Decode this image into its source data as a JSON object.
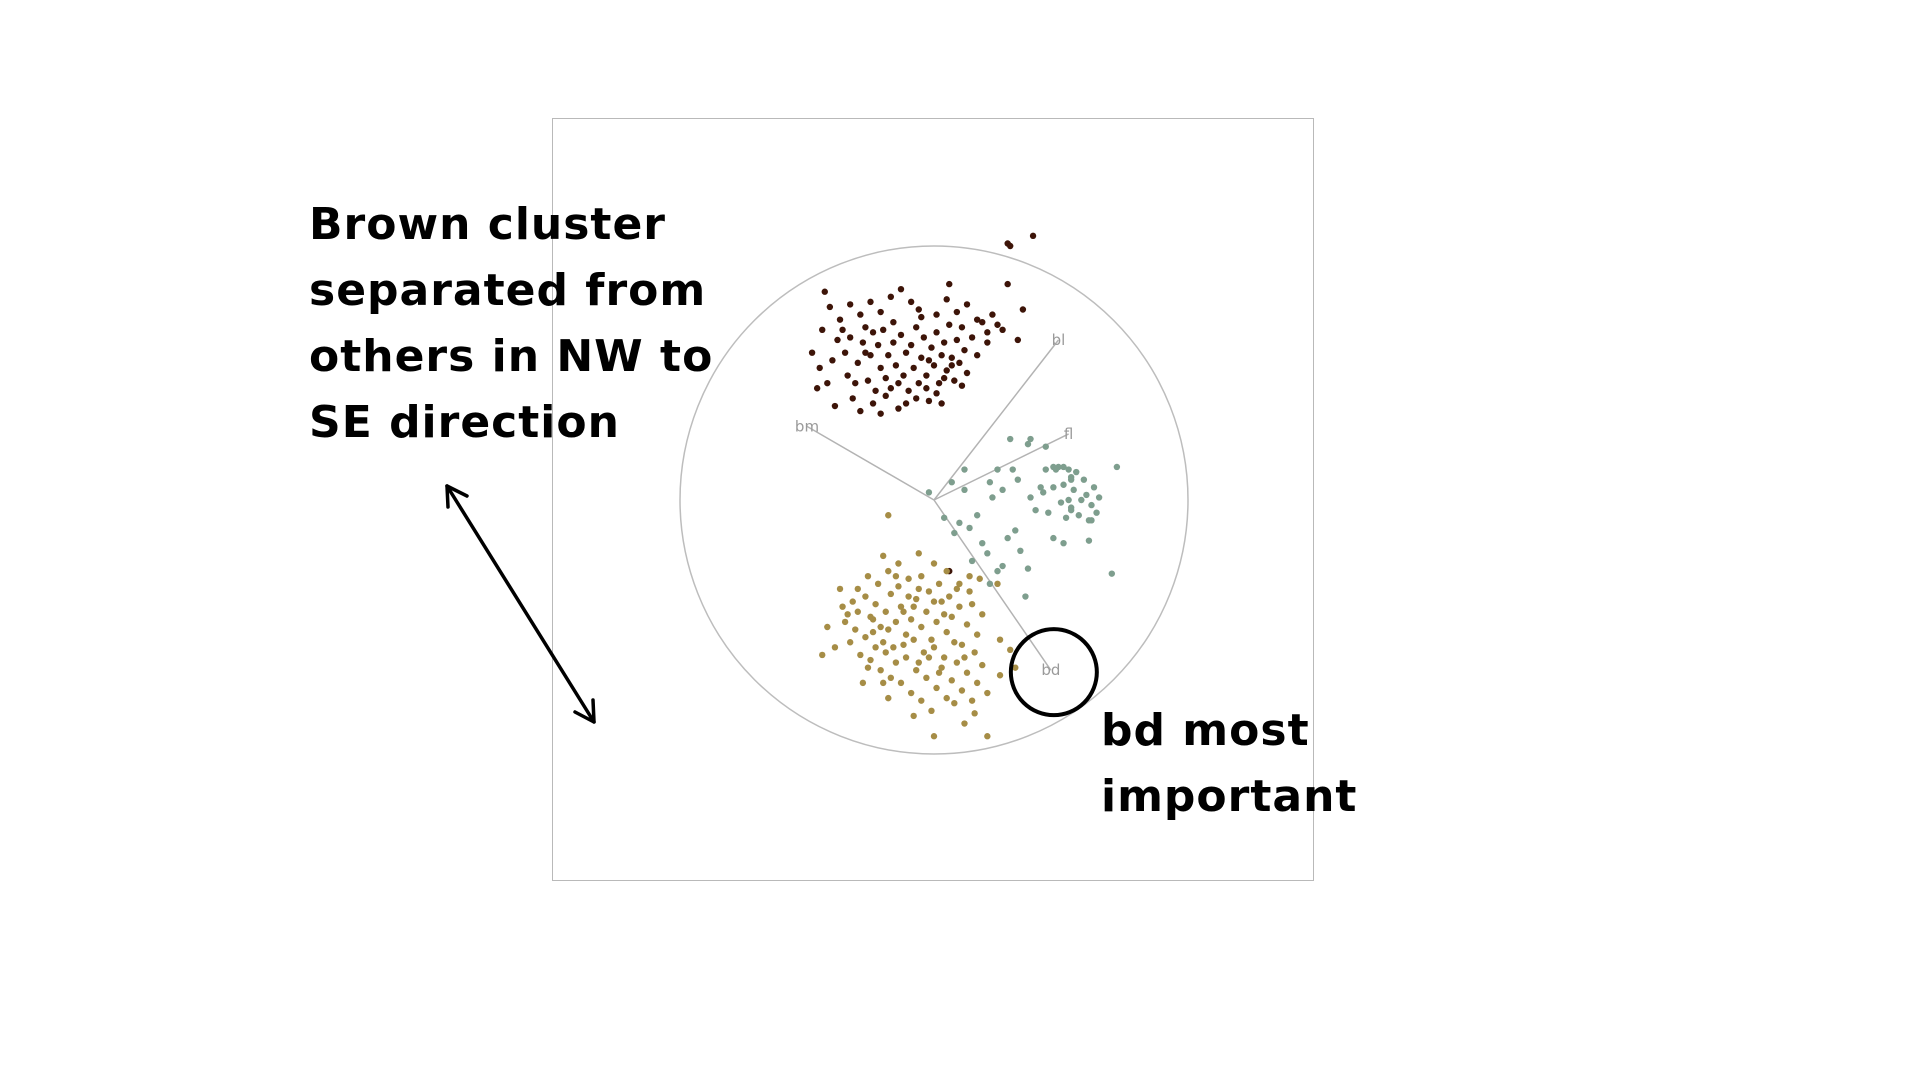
{
  "chart_data": {
    "type": "scatter",
    "title": "",
    "xlabel": "",
    "ylabel": "",
    "xlim": [
      -1,
      1
    ],
    "ylim": [
      -1,
      1
    ],
    "projection_circle_radius": 1,
    "grid": false,
    "axes": [
      {
        "label": "bl",
        "x": 0.49,
        "y": 0.63
      },
      {
        "label": "bm",
        "x": -0.5,
        "y": 0.29
      },
      {
        "label": "fl",
        "x": 0.53,
        "y": 0.26
      },
      {
        "label": "bd",
        "x": 0.46,
        "y": -0.67
      }
    ],
    "series": [
      {
        "color": "#3d1408",
        "points": [
          [
            -0.43,
            0.82
          ],
          [
            -0.41,
            0.76
          ],
          [
            -0.37,
            0.71
          ],
          [
            -0.33,
            0.77
          ],
          [
            -0.29,
            0.73
          ],
          [
            -0.25,
            0.78
          ],
          [
            -0.21,
            0.74
          ],
          [
            -0.17,
            0.8
          ],
          [
            -0.13,
            0.83
          ],
          [
            -0.09,
            0.78
          ],
          [
            -0.05,
            0.72
          ],
          [
            0.01,
            0.73
          ],
          [
            0.05,
            0.79
          ],
          [
            0.09,
            0.74
          ],
          [
            0.13,
            0.77
          ],
          [
            0.17,
            0.71
          ],
          [
            0.21,
            0.66
          ],
          [
            0.25,
            0.69
          ],
          [
            0.29,
            0.85
          ],
          [
            0.39,
            1.04
          ],
          [
            0.29,
            1.01
          ],
          [
            0.3,
            1.0
          ],
          [
            -0.48,
            0.58
          ],
          [
            -0.45,
            0.52
          ],
          [
            -0.46,
            0.44
          ],
          [
            -0.42,
            0.46
          ],
          [
            -0.4,
            0.55
          ],
          [
            -0.38,
            0.63
          ],
          [
            -0.35,
            0.58
          ],
          [
            -0.34,
            0.49
          ],
          [
            -0.32,
            0.4
          ],
          [
            -0.3,
            0.54
          ],
          [
            -0.28,
            0.62
          ],
          [
            -0.27,
            0.68
          ],
          [
            -0.26,
            0.47
          ],
          [
            -0.25,
            0.57
          ],
          [
            -0.23,
            0.43
          ],
          [
            -0.22,
            0.61
          ],
          [
            -0.21,
            0.52
          ],
          [
            -0.2,
            0.67
          ],
          [
            -0.19,
            0.48
          ],
          [
            -0.18,
            0.57
          ],
          [
            -0.17,
            0.44
          ],
          [
            -0.16,
            0.62
          ],
          [
            -0.15,
            0.53
          ],
          [
            -0.14,
            0.36
          ],
          [
            -0.13,
            0.65
          ],
          [
            -0.12,
            0.49
          ],
          [
            -0.11,
            0.58
          ],
          [
            -0.1,
            0.43
          ],
          [
            -0.09,
            0.61
          ],
          [
            -0.08,
            0.52
          ],
          [
            -0.07,
            0.68
          ],
          [
            -0.06,
            0.46
          ],
          [
            -0.05,
            0.56
          ],
          [
            -0.04,
            0.64
          ],
          [
            -0.03,
            0.49
          ],
          [
            -0.02,
            0.39
          ],
          [
            -0.01,
            0.6
          ],
          [
            0.0,
            0.53
          ],
          [
            0.01,
            0.66
          ],
          [
            0.02,
            0.46
          ],
          [
            0.03,
            0.57
          ],
          [
            0.04,
            0.62
          ],
          [
            0.05,
            0.51
          ],
          [
            0.06,
            0.69
          ],
          [
            0.07,
            0.56
          ],
          [
            0.08,
            0.47
          ],
          [
            0.09,
            0.63
          ],
          [
            0.1,
            0.54
          ],
          [
            0.11,
            0.68
          ],
          [
            0.12,
            0.59
          ],
          [
            0.13,
            0.5
          ],
          [
            0.15,
            0.64
          ],
          [
            0.17,
            0.57
          ],
          [
            0.19,
            0.7
          ],
          [
            0.21,
            0.62
          ],
          [
            0.23,
            0.73
          ],
          [
            0.27,
            0.67
          ],
          [
            0.33,
            0.63
          ],
          [
            0.35,
            0.75
          ],
          [
            -0.36,
            0.67
          ],
          [
            -0.31,
            0.46
          ],
          [
            -0.29,
            0.35
          ],
          [
            -0.24,
            0.38
          ],
          [
            -0.19,
            0.41
          ],
          [
            -0.11,
            0.38
          ],
          [
            -0.07,
            0.4
          ],
          [
            -0.03,
            0.44
          ],
          [
            0.01,
            0.42
          ],
          [
            0.03,
            0.38
          ],
          [
            0.07,
            0.53
          ],
          [
            0.11,
            0.45
          ],
          [
            -0.44,
            0.67
          ],
          [
            -0.39,
            0.37
          ],
          [
            -0.33,
            0.64
          ],
          [
            -0.24,
            0.66
          ],
          [
            -0.16,
            0.7
          ],
          [
            -0.06,
            0.75
          ],
          [
            0.06,
            0.85
          ],
          [
            -0.21,
            0.34
          ],
          [
            -0.14,
            0.46
          ],
          [
            -0.02,
            0.55
          ],
          [
            0.04,
            0.48
          ],
          [
            -0.27,
            0.58
          ],
          [
            0.06,
            -0.28
          ]
        ]
      },
      {
        "color": "#7e9e8e",
        "points": [
          [
            0.3,
            0.24
          ],
          [
            0.37,
            0.22
          ],
          [
            0.49,
            0.13
          ],
          [
            0.54,
            0.08
          ],
          [
            0.72,
            0.13
          ],
          [
            0.12,
            0.12
          ],
          [
            0.22,
            0.07
          ],
          [
            0.27,
            0.04
          ],
          [
            0.33,
            0.08
          ],
          [
            0.38,
            0.01
          ],
          [
            0.4,
            -0.04
          ],
          [
            0.43,
            0.03
          ],
          [
            0.45,
            -0.05
          ],
          [
            0.47,
            0.05
          ],
          [
            0.48,
            0.12
          ],
          [
            0.5,
            -0.01
          ],
          [
            0.51,
            0.06
          ],
          [
            0.52,
            -0.07
          ],
          [
            0.53,
            0.12
          ],
          [
            0.54,
            -0.03
          ],
          [
            0.55,
            0.04
          ],
          [
            0.56,
            0.11
          ],
          [
            0.57,
            -0.06
          ],
          [
            0.58,
            0.0
          ],
          [
            0.59,
            0.08
          ],
          [
            0.6,
            0.02
          ],
          [
            0.61,
            -0.08
          ],
          [
            0.62,
            -0.02
          ],
          [
            0.63,
            0.05
          ],
          [
            0.64,
            -0.05
          ],
          [
            0.65,
            0.01
          ],
          [
            0.54,
            0.09
          ],
          [
            0.47,
            0.13
          ],
          [
            -0.02,
            0.03
          ],
          [
            0.04,
            -0.07
          ],
          [
            0.07,
            0.07
          ],
          [
            0.08,
            -0.13
          ],
          [
            0.1,
            -0.09
          ],
          [
            0.12,
            0.04
          ],
          [
            0.14,
            -0.11
          ],
          [
            0.17,
            -0.06
          ],
          [
            0.19,
            -0.17
          ],
          [
            0.21,
            -0.21
          ],
          [
            0.23,
            0.01
          ],
          [
            0.25,
            -0.28
          ],
          [
            0.27,
            -0.26
          ],
          [
            0.29,
            -0.15
          ],
          [
            0.32,
            -0.12
          ],
          [
            0.36,
            -0.38
          ],
          [
            0.37,
            -0.27
          ],
          [
            0.47,
            -0.15
          ],
          [
            0.51,
            -0.17
          ],
          [
            0.54,
            -0.04
          ],
          [
            0.61,
            -0.16
          ],
          [
            0.7,
            -0.29
          ],
          [
            0.31,
            0.12
          ],
          [
            0.42,
            0.05
          ],
          [
            0.38,
            0.24
          ],
          [
            0.44,
            0.21
          ],
          [
            0.15,
            -0.24
          ],
          [
            0.22,
            -0.33
          ],
          [
            0.34,
            -0.2
          ],
          [
            0.51,
            0.13
          ],
          [
            0.25,
            0.12
          ],
          [
            0.62,
            -0.08
          ],
          [
            0.44,
            0.12
          ],
          [
            0.53,
            0.0
          ]
        ]
      },
      {
        "color": "#a68d46",
        "points": [
          [
            -0.18,
            -0.06
          ],
          [
            -0.06,
            -0.21
          ],
          [
            -0.2,
            -0.22
          ],
          [
            -0.14,
            -0.25
          ],
          [
            -0.1,
            -0.31
          ],
          [
            -0.05,
            -0.3
          ],
          [
            0.0,
            -0.25
          ],
          [
            0.05,
            -0.28
          ],
          [
            0.1,
            -0.33
          ],
          [
            0.14,
            -0.3
          ],
          [
            0.18,
            -0.31
          ],
          [
            -0.37,
            -0.35
          ],
          [
            -0.32,
            -0.4
          ],
          [
            -0.3,
            -0.44
          ],
          [
            -0.27,
            -0.38
          ],
          [
            -0.25,
            -0.46
          ],
          [
            -0.23,
            -0.41
          ],
          [
            -0.21,
            -0.5
          ],
          [
            -0.19,
            -0.44
          ],
          [
            -0.17,
            -0.37
          ],
          [
            -0.15,
            -0.48
          ],
          [
            -0.13,
            -0.42
          ],
          [
            -0.11,
            -0.53
          ],
          [
            -0.09,
            -0.47
          ],
          [
            -0.07,
            -0.39
          ],
          [
            -0.05,
            -0.5
          ],
          [
            -0.03,
            -0.44
          ],
          [
            -0.01,
            -0.55
          ],
          [
            0.01,
            -0.48
          ],
          [
            0.03,
            -0.4
          ],
          [
            0.05,
            -0.52
          ],
          [
            0.07,
            -0.46
          ],
          [
            0.09,
            -0.35
          ],
          [
            0.11,
            -0.57
          ],
          [
            0.13,
            -0.49
          ],
          [
            0.15,
            -0.41
          ],
          [
            0.17,
            -0.53
          ],
          [
            0.19,
            -0.45
          ],
          [
            -0.35,
            -0.48
          ],
          [
            -0.33,
            -0.56
          ],
          [
            -0.31,
            -0.51
          ],
          [
            -0.29,
            -0.61
          ],
          [
            -0.27,
            -0.54
          ],
          [
            -0.25,
            -0.63
          ],
          [
            -0.23,
            -0.58
          ],
          [
            -0.21,
            -0.67
          ],
          [
            -0.19,
            -0.6
          ],
          [
            -0.17,
            -0.7
          ],
          [
            -0.15,
            -0.64
          ],
          [
            -0.13,
            -0.72
          ],
          [
            -0.11,
            -0.62
          ],
          [
            -0.09,
            -0.76
          ],
          [
            -0.07,
            -0.67
          ],
          [
            -0.05,
            -0.79
          ],
          [
            -0.03,
            -0.7
          ],
          [
            -0.01,
            -0.83
          ],
          [
            0.01,
            -0.74
          ],
          [
            0.03,
            -0.66
          ],
          [
            0.05,
            -0.78
          ],
          [
            0.07,
            -0.71
          ],
          [
            0.09,
            -0.64
          ],
          [
            0.11,
            -0.75
          ],
          [
            0.13,
            -0.68
          ],
          [
            0.15,
            -0.79
          ],
          [
            0.17,
            -0.72
          ],
          [
            0.19,
            -0.65
          ],
          [
            0.21,
            -0.76
          ],
          [
            -0.36,
            -0.42
          ],
          [
            -0.42,
            -0.5
          ],
          [
            -0.44,
            -0.61
          ],
          [
            -0.39,
            -0.58
          ],
          [
            -0.28,
            -0.72
          ],
          [
            -0.18,
            -0.78
          ],
          [
            -0.08,
            -0.85
          ],
          [
            0.0,
            -0.93
          ],
          [
            0.12,
            -0.88
          ],
          [
            0.21,
            -0.93
          ],
          [
            0.26,
            -0.55
          ],
          [
            0.3,
            -0.59
          ],
          [
            0.26,
            -0.69
          ],
          [
            0.32,
            -0.66
          ],
          [
            0.25,
            -0.33
          ],
          [
            -0.24,
            -0.52
          ],
          [
            -0.2,
            -0.56
          ],
          [
            -0.16,
            -0.58
          ],
          [
            -0.12,
            -0.44
          ],
          [
            -0.08,
            -0.55
          ],
          [
            -0.04,
            -0.6
          ],
          [
            0.0,
            -0.58
          ],
          [
            0.04,
            -0.62
          ],
          [
            0.08,
            -0.56
          ],
          [
            0.12,
            -0.62
          ],
          [
            0.16,
            -0.6
          ],
          [
            -0.3,
            -0.35
          ],
          [
            -0.26,
            -0.3
          ],
          [
            -0.22,
            -0.33
          ],
          [
            -0.18,
            -0.28
          ],
          [
            -0.14,
            -0.34
          ],
          [
            -0.1,
            -0.38
          ],
          [
            -0.06,
            -0.35
          ],
          [
            -0.02,
            -0.36
          ],
          [
            0.02,
            -0.33
          ],
          [
            0.06,
            -0.38
          ],
          [
            0.1,
            -0.42
          ],
          [
            0.14,
            -0.36
          ],
          [
            -0.34,
            -0.45
          ],
          [
            -0.24,
            -0.47
          ],
          [
            -0.18,
            -0.51
          ],
          [
            -0.12,
            -0.57
          ],
          [
            -0.06,
            -0.64
          ],
          [
            0.02,
            -0.68
          ],
          [
            0.08,
            -0.8
          ],
          [
            0.16,
            -0.84
          ],
          [
            -0.02,
            -0.62
          ],
          [
            0.04,
            -0.45
          ],
          [
            -0.08,
            -0.42
          ],
          [
            0.0,
            -0.4
          ],
          [
            -0.15,
            -0.3
          ],
          [
            -0.26,
            -0.66
          ],
          [
            -0.2,
            -0.72
          ]
        ]
      }
    ]
  },
  "annotations": {
    "brown_note": {
      "lines": [
        "Brown cluster",
        "separated from",
        "others in NW to",
        "SE direction"
      ]
    },
    "bd_note": {
      "lines": [
        "bd most",
        "important"
      ]
    }
  }
}
